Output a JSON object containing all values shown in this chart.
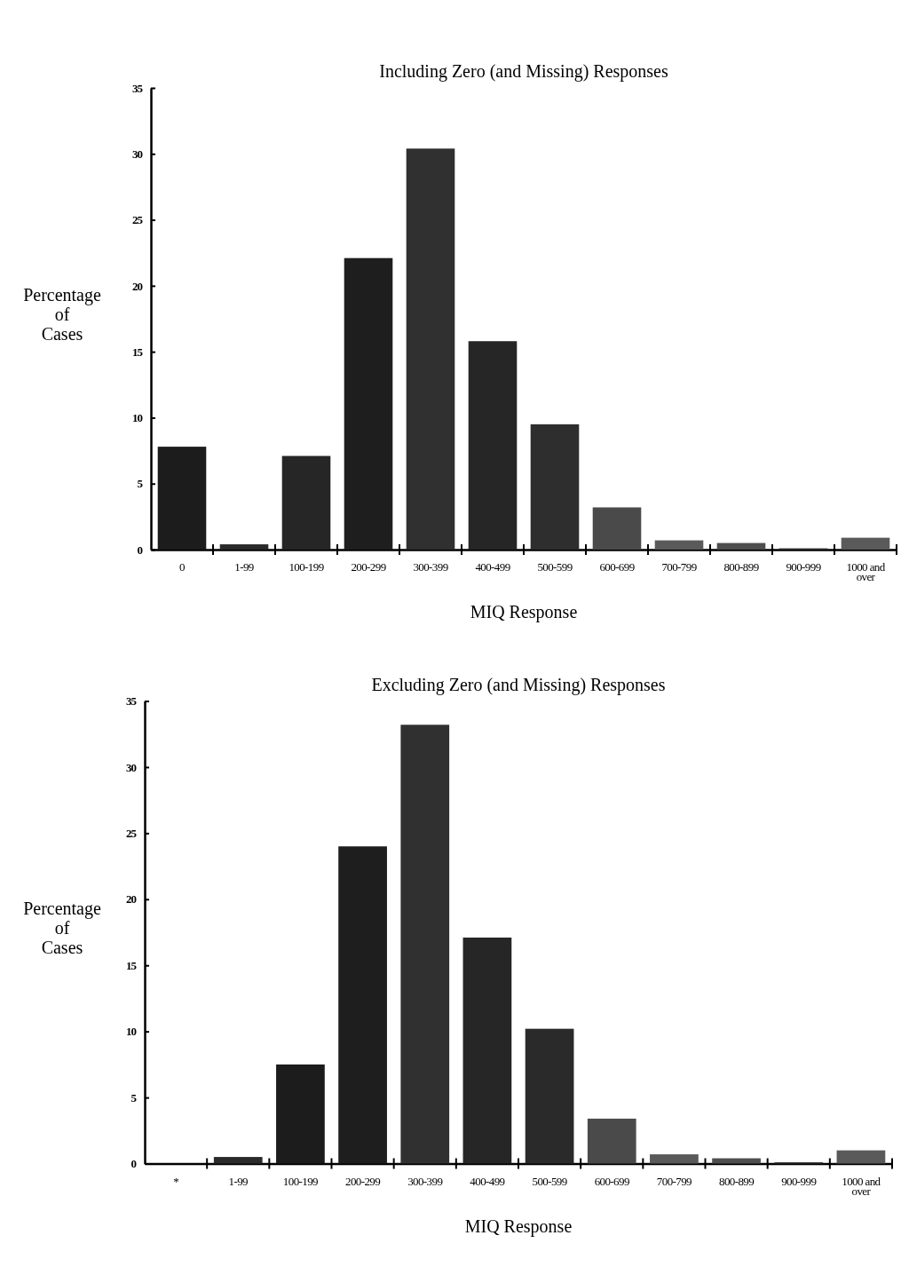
{
  "chart_data": [
    {
      "type": "bar",
      "title": "Including Zero (and Missing) Responses",
      "xlabel": "MIQ Response",
      "ylabel": "Percentage of Cases",
      "categories": [
        "0",
        "1-99",
        "100-199",
        "200-299",
        "300-399",
        "400-499",
        "500-599",
        "600-699",
        "700-799",
        "800-899",
        "900-999",
        "1000 and over"
      ],
      "values": [
        7.8,
        0.4,
        7.1,
        22.1,
        30.4,
        15.8,
        9.5,
        3.2,
        0.7,
        0.5,
        0.1,
        0.9
      ],
      "colors": [
        "#1c1c1c",
        "#2a2a2a",
        "#262626",
        "#1e1e1e",
        "#303030",
        "#262626",
        "#2e2e2e",
        "#4a4a4a",
        "#5a5a5a",
        "#4e4e4e",
        "#3a3a3a",
        "#5a5a5a"
      ],
      "ylim": [
        0,
        35
      ],
      "yticks": [
        0,
        5,
        10,
        15,
        20,
        25,
        30,
        35
      ],
      "grid": false
    },
    {
      "type": "bar",
      "title": "Excluding Zero (and Missing) Responses",
      "xlabel": "MIQ Response",
      "ylabel": "Percentage of Cases",
      "categories": [
        "*",
        "1-99",
        "100-199",
        "200-299",
        "300-399",
        "400-499",
        "500-599",
        "600-699",
        "700-799",
        "800-899",
        "900-999",
        "1000 and over"
      ],
      "values": [
        null,
        0.5,
        7.5,
        24.0,
        33.2,
        17.1,
        10.2,
        3.4,
        0.7,
        0.4,
        0.1,
        1.0
      ],
      "colors": [
        null,
        "#2a2a2a",
        "#1c1c1c",
        "#1e1e1e",
        "#303030",
        "#262626",
        "#2a2a2a",
        "#4a4a4a",
        "#5a5a5a",
        "#4e4e4e",
        "#3a3a3a",
        "#5a5a5a"
      ],
      "ylim": [
        0,
        35
      ],
      "yticks": [
        0,
        5,
        10,
        15,
        20,
        25,
        30,
        35
      ],
      "grid": false
    }
  ]
}
